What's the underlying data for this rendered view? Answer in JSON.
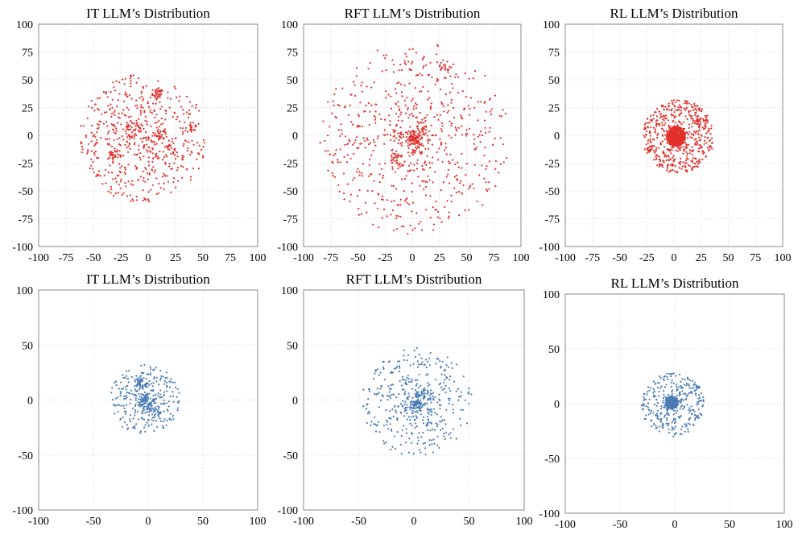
{
  "chart_data": [
    {
      "id": "top-it",
      "type": "scatter",
      "title": "IT LLM’s Distribution",
      "color": "#e0302c",
      "xlim": [
        -100,
        100
      ],
      "ylim": [
        -100,
        100
      ],
      "xticks": [
        -100,
        -75,
        -50,
        -25,
        0,
        25,
        50,
        75,
        100
      ],
      "yticks": [
        -100,
        -75,
        -50,
        -25,
        0,
        25,
        50,
        75,
        100
      ],
      "cloud": {
        "center": [
          -5,
          -3
        ],
        "radius": 58,
        "count": 560,
        "concentration": 0.65,
        "seed": 11
      },
      "clusters": [
        [
          8,
          38,
          5,
          24
        ],
        [
          -30,
          -18,
          6,
          22
        ],
        [
          10,
          2,
          6,
          22
        ],
        [
          -15,
          5,
          8,
          25
        ],
        [
          40,
          8,
          4,
          14
        ],
        [
          22,
          -12,
          5,
          14
        ]
      ]
    },
    {
      "id": "top-rft",
      "type": "scatter",
      "title": "RFT LLM’s Distribution",
      "color": "#e0302c",
      "xlim": [
        -100,
        100
      ],
      "ylim": [
        -100,
        100
      ],
      "xticks": [
        -100,
        -75,
        -50,
        -25,
        0,
        25,
        50,
        75,
        100
      ],
      "yticks": [
        -100,
        -75,
        -50,
        -25,
        0,
        25,
        50,
        75,
        100
      ],
      "cloud": {
        "center": [
          2,
          -3
        ],
        "radius": 87,
        "count": 780,
        "concentration": 1.0,
        "seed": 23
      },
      "clusters": [
        [
          30,
          62,
          6,
          18
        ],
        [
          -15,
          -20,
          8,
          16
        ]
      ]
    },
    {
      "id": "top-rl",
      "type": "scatter",
      "title": "RL LLM’s Distribution",
      "color": "#e0302c",
      "xlim": [
        -100,
        100
      ],
      "ylim": [
        -100,
        100
      ],
      "xticks": [
        -100,
        -75,
        -50,
        -25,
        0,
        25,
        50,
        75,
        100
      ],
      "yticks": [
        -100,
        -75,
        -50,
        -25,
        0,
        25,
        50,
        75,
        100
      ],
      "cloud": {
        "center": [
          4,
          -1
        ],
        "radius": 33,
        "count": 520,
        "concentration": 0.5,
        "seed": 37
      },
      "clusters": [
        [
          2,
          -1,
          9,
          500
        ],
        [
          -22,
          -12,
          3,
          12
        ],
        [
          23,
          13,
          3,
          10
        ]
      ]
    },
    {
      "id": "bottom-it",
      "type": "scatter",
      "title": "IT LLM’s Distribution",
      "color": "#4a7bb5",
      "xlim": [
        -100,
        100
      ],
      "ylim": [
        -100,
        100
      ],
      "xticks": [
        -100,
        -50,
        0,
        50,
        100
      ],
      "yticks": [
        -100,
        -50,
        0,
        50,
        100
      ],
      "cloud": {
        "center": [
          -3,
          0
        ],
        "radius": 32,
        "count": 330,
        "concentration": 0.8,
        "seed": 41
      },
      "clusters": [
        [
          -5,
          15,
          5,
          30
        ],
        [
          -3,
          -3,
          6,
          25
        ],
        [
          8,
          -12,
          5,
          14
        ]
      ]
    },
    {
      "id": "bottom-rft",
      "type": "scatter",
      "title": "RFT LLM’s Distribution",
      "color": "#4a7bb5",
      "xlim": [
        -100,
        100
      ],
      "ylim": [
        -100,
        100
      ],
      "xticks": [
        -100,
        -50,
        0,
        50,
        100
      ],
      "yticks": [
        -100,
        -50,
        0,
        50,
        100
      ],
      "cloud": {
        "center": [
          3,
          -2
        ],
        "radius": 50,
        "count": 480,
        "concentration": 0.95,
        "seed": 53
      },
      "clusters": [
        [
          5,
          0,
          8,
          20
        ]
      ]
    },
    {
      "id": "bottom-rl",
      "type": "scatter",
      "title": "RL LLM’s Distribution",
      "color": "#4a7bb5",
      "xlim": [
        -100,
        100
      ],
      "ylim": [
        -100,
        100
      ],
      "xticks": [
        -100,
        -50,
        0,
        50,
        100
      ],
      "yticks": [
        -100,
        -50,
        0,
        50,
        100
      ],
      "cloud": {
        "center": [
          -2,
          -1
        ],
        "radius": 29,
        "count": 320,
        "concentration": 0.55,
        "seed": 67
      },
      "clusters": [
        [
          -3,
          1,
          6,
          200
        ],
        [
          20,
          14,
          3,
          10
        ]
      ]
    }
  ]
}
